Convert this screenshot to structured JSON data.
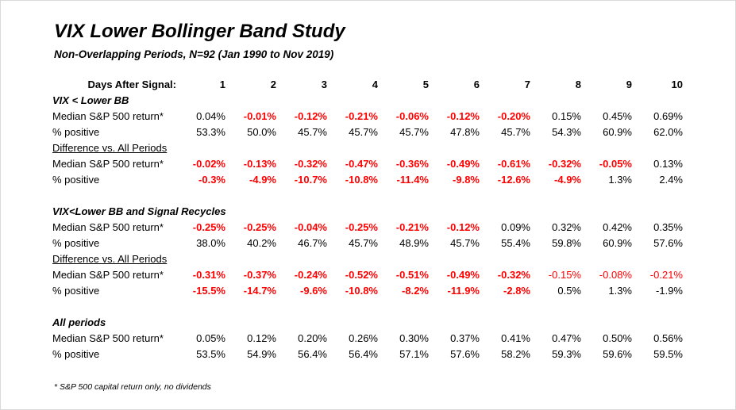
{
  "title": "VIX Lower Bollinger Band Study",
  "subtitle": "Non-Overlapping Periods, N=92  (Jan 1990 to Nov 2019)",
  "header": {
    "label": "Days After Signal:",
    "days": [
      "1",
      "2",
      "3",
      "4",
      "5",
      "6",
      "7",
      "8",
      "9",
      "10"
    ]
  },
  "colors": {
    "negative": "#ff0000",
    "text": "#000000"
  },
  "sections": [
    {
      "title": "VIX < Lower BB",
      "rows": [
        {
          "label": "Median S&P 500 return*",
          "values": [
            {
              "v": "0.04%",
              "s": ""
            },
            {
              "v": "-0.01%",
              "s": "neg-bold"
            },
            {
              "v": "-0.12%",
              "s": "neg-bold"
            },
            {
              "v": "-0.21%",
              "s": "neg-bold"
            },
            {
              "v": "-0.06%",
              "s": "neg-bold"
            },
            {
              "v": "-0.12%",
              "s": "neg-bold"
            },
            {
              "v": "-0.20%",
              "s": "neg-bold"
            },
            {
              "v": "0.15%",
              "s": ""
            },
            {
              "v": "0.45%",
              "s": ""
            },
            {
              "v": "0.69%",
              "s": ""
            }
          ]
        },
        {
          "label": "% positive",
          "values": [
            {
              "v": "53.3%",
              "s": ""
            },
            {
              "v": "50.0%",
              "s": ""
            },
            {
              "v": "45.7%",
              "s": ""
            },
            {
              "v": "45.7%",
              "s": ""
            },
            {
              "v": "45.7%",
              "s": ""
            },
            {
              "v": "47.8%",
              "s": ""
            },
            {
              "v": "45.7%",
              "s": ""
            },
            {
              "v": "54.3%",
              "s": ""
            },
            {
              "v": "60.9%",
              "s": ""
            },
            {
              "v": "62.0%",
              "s": ""
            }
          ]
        }
      ],
      "diff_title": "Difference vs. All Periods",
      "diff_rows": [
        {
          "label": "Median S&P 500 return*",
          "values": [
            {
              "v": "-0.02%",
              "s": "neg-bold"
            },
            {
              "v": "-0.13%",
              "s": "neg-bold"
            },
            {
              "v": "-0.32%",
              "s": "neg-bold"
            },
            {
              "v": "-0.47%",
              "s": "neg-bold"
            },
            {
              "v": "-0.36%",
              "s": "neg-bold"
            },
            {
              "v": "-0.49%",
              "s": "neg-bold"
            },
            {
              "v": "-0.61%",
              "s": "neg-bold"
            },
            {
              "v": "-0.32%",
              "s": "neg-bold"
            },
            {
              "v": "-0.05%",
              "s": "neg-bold"
            },
            {
              "v": "0.13%",
              "s": ""
            }
          ]
        },
        {
          "label": "% positive",
          "values": [
            {
              "v": "-0.3%",
              "s": "neg-bold"
            },
            {
              "v": "-4.9%",
              "s": "neg-bold"
            },
            {
              "v": "-10.7%",
              "s": "neg-bold"
            },
            {
              "v": "-10.8%",
              "s": "neg-bold"
            },
            {
              "v": "-11.4%",
              "s": "neg-bold"
            },
            {
              "v": "-9.8%",
              "s": "neg-bold"
            },
            {
              "v": "-12.6%",
              "s": "neg-bold"
            },
            {
              "v": "-4.9%",
              "s": "neg-bold"
            },
            {
              "v": "1.3%",
              "s": ""
            },
            {
              "v": "2.4%",
              "s": ""
            }
          ]
        }
      ]
    },
    {
      "title": "VIX<Lower BB and Signal Recycles",
      "rows": [
        {
          "label": "Median S&P 500 return*",
          "values": [
            {
              "v": "-0.25%",
              "s": "neg-bold"
            },
            {
              "v": "-0.25%",
              "s": "neg-bold"
            },
            {
              "v": "-0.04%",
              "s": "neg-bold"
            },
            {
              "v": "-0.25%",
              "s": "neg-bold"
            },
            {
              "v": "-0.21%",
              "s": "neg-bold"
            },
            {
              "v": "-0.12%",
              "s": "neg-bold"
            },
            {
              "v": "0.09%",
              "s": ""
            },
            {
              "v": "0.32%",
              "s": ""
            },
            {
              "v": "0.42%",
              "s": ""
            },
            {
              "v": "0.35%",
              "s": ""
            }
          ]
        },
        {
          "label": "% positive",
          "values": [
            {
              "v": "38.0%",
              "s": ""
            },
            {
              "v": "40.2%",
              "s": ""
            },
            {
              "v": "46.7%",
              "s": ""
            },
            {
              "v": "45.7%",
              "s": ""
            },
            {
              "v": "48.9%",
              "s": ""
            },
            {
              "v": "45.7%",
              "s": ""
            },
            {
              "v": "55.4%",
              "s": ""
            },
            {
              "v": "59.8%",
              "s": ""
            },
            {
              "v": "60.9%",
              "s": ""
            },
            {
              "v": "57.6%",
              "s": ""
            }
          ]
        }
      ],
      "diff_title": "Difference vs. All Periods",
      "diff_rows": [
        {
          "label": "Median S&P 500 return*",
          "values": [
            {
              "v": "-0.31%",
              "s": "neg-bold"
            },
            {
              "v": "-0.37%",
              "s": "neg-bold"
            },
            {
              "v": "-0.24%",
              "s": "neg-bold"
            },
            {
              "v": "-0.52%",
              "s": "neg-bold"
            },
            {
              "v": "-0.51%",
              "s": "neg-bold"
            },
            {
              "v": "-0.49%",
              "s": "neg-bold"
            },
            {
              "v": "-0.32%",
              "s": "neg-bold"
            },
            {
              "v": "-0.15%",
              "s": "neg"
            },
            {
              "v": "-0.08%",
              "s": "neg"
            },
            {
              "v": "-0.21%",
              "s": "neg"
            }
          ]
        },
        {
          "label": "% positive",
          "values": [
            {
              "v": "-15.5%",
              "s": "neg-bold"
            },
            {
              "v": "-14.7%",
              "s": "neg-bold"
            },
            {
              "v": "-9.6%",
              "s": "neg-bold"
            },
            {
              "v": "-10.8%",
              "s": "neg-bold"
            },
            {
              "v": "-8.2%",
              "s": "neg-bold"
            },
            {
              "v": "-11.9%",
              "s": "neg-bold"
            },
            {
              "v": "-2.8%",
              "s": "neg-bold"
            },
            {
              "v": "0.5%",
              "s": ""
            },
            {
              "v": "1.3%",
              "s": ""
            },
            {
              "v": "-1.9%",
              "s": ""
            }
          ]
        }
      ]
    },
    {
      "title": "All periods",
      "rows": [
        {
          "label": "Median S&P 500 return*",
          "values": [
            {
              "v": "0.05%",
              "s": ""
            },
            {
              "v": "0.12%",
              "s": ""
            },
            {
              "v": "0.20%",
              "s": ""
            },
            {
              "v": "0.26%",
              "s": ""
            },
            {
              "v": "0.30%",
              "s": ""
            },
            {
              "v": "0.37%",
              "s": ""
            },
            {
              "v": "0.41%",
              "s": ""
            },
            {
              "v": "0.47%",
              "s": ""
            },
            {
              "v": "0.50%",
              "s": ""
            },
            {
              "v": "0.56%",
              "s": ""
            }
          ]
        },
        {
          "label": "% positive",
          "values": [
            {
              "v": "53.5%",
              "s": ""
            },
            {
              "v": "54.9%",
              "s": ""
            },
            {
              "v": "56.4%",
              "s": ""
            },
            {
              "v": "56.4%",
              "s": ""
            },
            {
              "v": "57.1%",
              "s": ""
            },
            {
              "v": "57.6%",
              "s": ""
            },
            {
              "v": "58.2%",
              "s": ""
            },
            {
              "v": "59.3%",
              "s": ""
            },
            {
              "v": "59.6%",
              "s": ""
            },
            {
              "v": "59.5%",
              "s": ""
            }
          ]
        }
      ]
    }
  ],
  "footnote": "* S&P 500 capital return only, no dividends"
}
